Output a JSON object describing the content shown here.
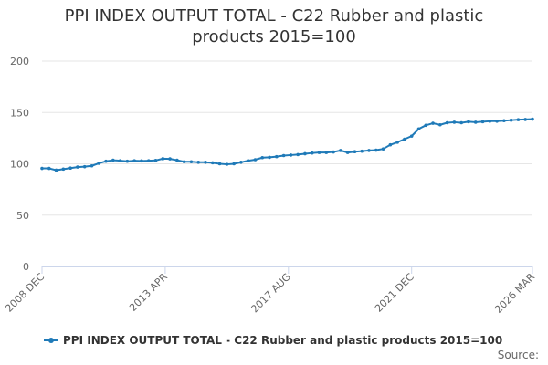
{
  "chart_data": {
    "type": "line",
    "title_lines": [
      "PPI INDEX OUTPUT TOTAL - C22 Rubber and plastic",
      "products 2015=100"
    ],
    "x_tick_labels": [
      "2008 DEC",
      "2013 APR",
      "2017 AUG",
      "2021 DEC",
      "2026 MAR"
    ],
    "y_tick_labels": [
      "0",
      "50",
      "100",
      "150",
      "200"
    ],
    "ylim": [
      0,
      200
    ],
    "grid": true,
    "legend_position": "bottom-left",
    "series": [
      {
        "name": "PPI INDEX OUTPUT TOTAL - C22 Rubber and plastic products 2015=100",
        "color": "#1f7ab8",
        "x": [
          "2008-12",
          "2009-03",
          "2009-06",
          "2009-09",
          "2009-12",
          "2010-03",
          "2010-06",
          "2010-09",
          "2010-12",
          "2011-03",
          "2011-06",
          "2011-09",
          "2011-12",
          "2012-03",
          "2012-06",
          "2012-09",
          "2012-12",
          "2013-03",
          "2013-06",
          "2013-09",
          "2013-12",
          "2014-03",
          "2014-06",
          "2014-09",
          "2014-12",
          "2015-03",
          "2015-06",
          "2015-09",
          "2015-12",
          "2016-03",
          "2016-06",
          "2016-09",
          "2016-12",
          "2017-03",
          "2017-06",
          "2017-09",
          "2017-12",
          "2018-03",
          "2018-06",
          "2018-09",
          "2018-12",
          "2019-03",
          "2019-06",
          "2019-09",
          "2019-12",
          "2020-03",
          "2020-06",
          "2020-09",
          "2020-12",
          "2021-03",
          "2021-06",
          "2021-09",
          "2021-12",
          "2022-03",
          "2022-06",
          "2022-09",
          "2022-12",
          "2023-03",
          "2023-06",
          "2023-09",
          "2023-12",
          "2024-03",
          "2024-06",
          "2024-09",
          "2024-12",
          "2025-03",
          "2025-06",
          "2025-09",
          "2025-12",
          "2026-03"
        ],
        "values": [
          95.5,
          95.5,
          93.8,
          94.8,
          95.8,
          96.8,
          97.2,
          98.0,
          100.5,
          102.5,
          103.5,
          103.0,
          102.5,
          103.0,
          102.8,
          103.0,
          103.3,
          105.0,
          104.8,
          103.5,
          102.0,
          102.0,
          101.5,
          101.5,
          101.0,
          100.0,
          99.5,
          100.0,
          101.5,
          103.0,
          104.0,
          106.0,
          106.3,
          107.0,
          108.0,
          108.5,
          109.0,
          109.8,
          110.5,
          111.0,
          111.0,
          111.5,
          113.0,
          111.0,
          111.8,
          112.3,
          113.0,
          113.3,
          114.5,
          118.5,
          121.0,
          124.0,
          127.0,
          134.0,
          137.5,
          139.5,
          138.0,
          140.0,
          140.5,
          140.0,
          141.0,
          140.5,
          141.0,
          141.5,
          141.5,
          142.0,
          142.5,
          143.0,
          143.2,
          143.5
        ]
      }
    ]
  },
  "legend": {
    "label": "PPI INDEX OUTPUT TOTAL - C22 Rubber and plastic products 2015=100"
  },
  "source": {
    "label": "Source:"
  }
}
